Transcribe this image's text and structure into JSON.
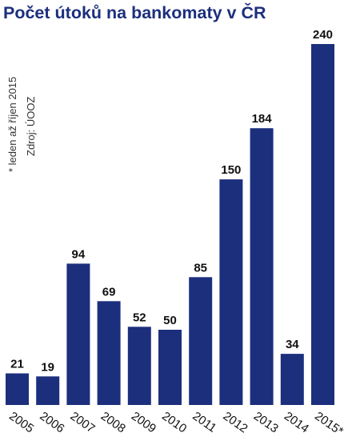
{
  "chart_data": {
    "type": "bar",
    "title": "Počet útoků na bankomaty v ČR",
    "subtitle": "* leden až říjen 2015",
    "source": "Zdroj: ÚOOZ",
    "categories": [
      "2005",
      "2006",
      "2007",
      "2008",
      "2009",
      "2010",
      "2011",
      "2012",
      "2013",
      "2014",
      "2015*"
    ],
    "values": [
      21,
      19,
      94,
      69,
      52,
      50,
      85,
      150,
      184,
      34,
      240
    ],
    "xlabel": "",
    "ylabel": "",
    "ylim": [
      0,
      240
    ],
    "grid": false,
    "bar_color": "#1c2f7d"
  }
}
